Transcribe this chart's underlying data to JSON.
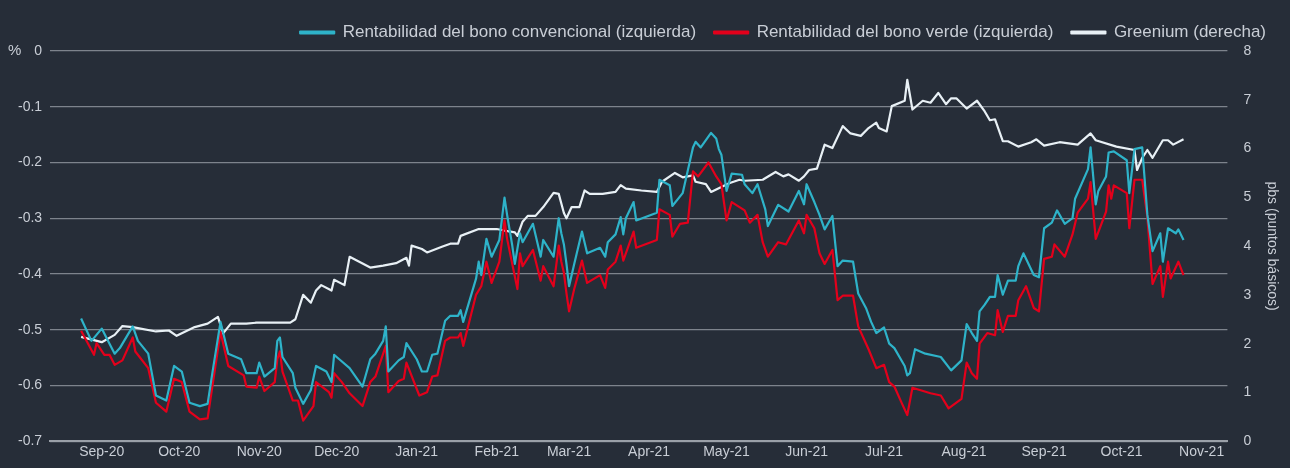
{
  "chart_data": {
    "type": "line",
    "ylabel": "%",
    "y2label": "pbs (puntos básicos)",
    "legend": "top right",
    "grid": "y",
    "xlim": [
      "2020-08-12",
      "2021-11-11"
    ],
    "xticks": [
      {
        "value": "2020-09-01",
        "label": "Sep-20"
      },
      {
        "value": "2020-10-01",
        "label": "Oct-20"
      },
      {
        "value": "2020-11-01",
        "label": "Nov-20"
      },
      {
        "value": "2020-12-01",
        "label": "Dec-20"
      },
      {
        "value": "2021-01-01",
        "label": "Jan-21"
      },
      {
        "value": "2021-02-01",
        "label": "Feb-21"
      },
      {
        "value": "2021-03-01",
        "label": "Mar-21"
      },
      {
        "value": "2021-04-01",
        "label": "Apr-21"
      },
      {
        "value": "2021-05-01",
        "label": "May-21"
      },
      {
        "value": "2021-06-01",
        "label": "Jun-21"
      },
      {
        "value": "2021-07-01",
        "label": "Jul-21"
      },
      {
        "value": "2021-08-01",
        "label": "Aug-21"
      },
      {
        "value": "2021-09-01",
        "label": "Sep-21"
      },
      {
        "value": "2021-10-01",
        "label": "Oct-21"
      },
      {
        "value": "2021-11-01",
        "label": "Nov-21"
      }
    ],
    "ylim": [
      -0.7,
      0
    ],
    "yticks": [
      0,
      -0.1,
      -0.2,
      -0.3,
      -0.4,
      -0.5,
      -0.6,
      -0.7
    ],
    "y2lim": [
      0,
      8
    ],
    "y2ticks": [
      0,
      1,
      2,
      3,
      4,
      5,
      6,
      7,
      8
    ],
    "series": [
      {
        "name": "Rentabilidad del bono convencional (izquierda)",
        "color": "#2eb3c9",
        "x": [
          "2020-08-24",
          "2020-08-28",
          "2020-09-01",
          "2020-09-04",
          "2020-09-06",
          "2020-09-08",
          "2020-09-13",
          "2020-09-15",
          "2020-09-19",
          "2020-09-22",
          "2020-09-26",
          "2020-09-29",
          "2020-10-02",
          "2020-10-05",
          "2020-10-09",
          "2020-10-12",
          "2020-10-14",
          "2020-10-17",
          "2020-10-20",
          "2020-10-25",
          "2020-10-27",
          "2020-10-31",
          "2020-11-01",
          "2020-11-03",
          "2020-11-07",
          "2020-11-08",
          "2020-11-09",
          "2020-11-10",
          "2020-11-14",
          "2020-11-15",
          "2020-11-18",
          "2020-11-21",
          "2020-11-23",
          "2020-11-27",
          "2020-11-29",
          "2020-11-30",
          "2020-12-02",
          "2020-12-06",
          "2020-12-11",
          "2020-12-14",
          "2020-12-16",
          "2020-12-19",
          "2020-12-20",
          "2020-12-21",
          "2020-12-25",
          "2020-12-27",
          "2020-12-28",
          "2021-01-01",
          "2021-01-03",
          "2021-01-05",
          "2021-01-07",
          "2021-01-09",
          "2021-01-12",
          "2021-01-14",
          "2021-01-17",
          "2021-01-18",
          "2021-01-19",
          "2021-01-24",
          "2021-01-25",
          "2021-01-26",
          "2021-01-28",
          "2021-01-30",
          "2021-02-02",
          "2021-02-04",
          "2021-02-05",
          "2021-02-07",
          "2021-02-08",
          "2021-02-10",
          "2021-02-11",
          "2021-02-15",
          "2021-02-18",
          "2021-02-19",
          "2021-02-23",
          "2021-02-25",
          "2021-02-26",
          "2021-02-27",
          "2021-02-28",
          "2021-03-01",
          "2021-03-03",
          "2021-03-06",
          "2021-03-08",
          "2021-03-13",
          "2021-03-15",
          "2021-03-16",
          "2021-03-19",
          "2021-03-21",
          "2021-03-22",
          "2021-03-23",
          "2021-03-26",
          "2021-03-27",
          "2021-04-04",
          "2021-04-05",
          "2021-04-09",
          "2021-04-10",
          "2021-04-14",
          "2021-04-18",
          "2021-04-19",
          "2021-04-21",
          "2021-04-25",
          "2021-04-27",
          "2021-04-28",
          "2021-04-29",
          "2021-05-01",
          "2021-05-03",
          "2021-05-07",
          "2021-05-08",
          "2021-05-11",
          "2021-05-13",
          "2021-05-16",
          "2021-05-17",
          "2021-05-21",
          "2021-05-25",
          "2021-05-29",
          "2021-05-31",
          "2021-06-01",
          "2021-06-04",
          "2021-06-06",
          "2021-06-08",
          "2021-06-11",
          "2021-06-13",
          "2021-06-15",
          "2021-06-19",
          "2021-06-21",
          "2021-06-24",
          "2021-06-26",
          "2021-06-28",
          "2021-07-01",
          "2021-07-03",
          "2021-07-05",
          "2021-07-09",
          "2021-07-10",
          "2021-07-11",
          "2021-07-13",
          "2021-07-17",
          "2021-07-23",
          "2021-07-27",
          "2021-07-31",
          "2021-08-02",
          "2021-08-04",
          "2021-08-06",
          "2021-08-07",
          "2021-08-09",
          "2021-08-11",
          "2021-08-13",
          "2021-08-14",
          "2021-08-16",
          "2021-08-18",
          "2021-08-21",
          "2021-08-22",
          "2021-08-24",
          "2021-08-28",
          "2021-08-30",
          "2021-09-01",
          "2021-09-04",
          "2021-09-06",
          "2021-09-09",
          "2021-09-12",
          "2021-09-13",
          "2021-09-18",
          "2021-09-19",
          "2021-09-21",
          "2021-09-22",
          "2021-09-25",
          "2021-09-26",
          "2021-09-28",
          "2021-10-03",
          "2021-10-04",
          "2021-10-06",
          "2021-10-09",
          "2021-10-11",
          "2021-10-13",
          "2021-10-16",
          "2021-10-17",
          "2021-10-19",
          "2021-10-22",
          "2021-10-23",
          "2021-10-25"
        ],
        "values": [
          -0.48,
          -0.52,
          -0.498,
          -0.525,
          -0.543,
          -0.533,
          -0.494,
          -0.52,
          -0.543,
          -0.618,
          -0.627,
          -0.565,
          -0.575,
          -0.631,
          -0.637,
          -0.633,
          -0.573,
          -0.486,
          -0.543,
          -0.553,
          -0.578,
          -0.578,
          -0.559,
          -0.584,
          -0.569,
          -0.52,
          -0.514,
          -0.549,
          -0.578,
          -0.604,
          -0.633,
          -0.608,
          -0.565,
          -0.575,
          -0.594,
          -0.545,
          -0.553,
          -0.569,
          -0.602,
          -0.553,
          -0.543,
          -0.52,
          -0.494,
          -0.575,
          -0.555,
          -0.549,
          -0.524,
          -0.553,
          -0.575,
          -0.575,
          -0.545,
          -0.543,
          -0.484,
          -0.475,
          -0.475,
          -0.465,
          -0.486,
          -0.408,
          -0.378,
          -0.402,
          -0.337,
          -0.369,
          -0.339,
          -0.263,
          -0.294,
          -0.349,
          -0.382,
          -0.327,
          -0.343,
          -0.31,
          -0.369,
          -0.339,
          -0.369,
          -0.3,
          -0.327,
          -0.347,
          -0.382,
          -0.422,
          -0.382,
          -0.324,
          -0.363,
          -0.353,
          -0.369,
          -0.343,
          -0.329,
          -0.298,
          -0.329,
          -0.3,
          -0.271,
          -0.304,
          -0.29,
          -0.231,
          -0.241,
          -0.278,
          -0.255,
          -0.173,
          -0.163,
          -0.173,
          -0.147,
          -0.157,
          -0.176,
          -0.186,
          -0.251,
          -0.22,
          -0.222,
          -0.239,
          -0.255,
          -0.239,
          -0.284,
          -0.314,
          -0.276,
          -0.288,
          -0.251,
          -0.275,
          -0.239,
          -0.271,
          -0.294,
          -0.32,
          -0.296,
          -0.386,
          -0.376,
          -0.378,
          -0.435,
          -0.461,
          -0.486,
          -0.506,
          -0.496,
          -0.525,
          -0.533,
          -0.565,
          -0.582,
          -0.578,
          -0.535,
          -0.543,
          -0.549,
          -0.573,
          -0.555,
          -0.49,
          -0.506,
          -0.52,
          -0.467,
          -0.455,
          -0.441,
          -0.441,
          -0.402,
          -0.437,
          -0.412,
          -0.412,
          -0.386,
          -0.363,
          -0.402,
          -0.406,
          -0.318,
          -0.308,
          -0.286,
          -0.31,
          -0.3,
          -0.265,
          -0.212,
          -0.173,
          -0.275,
          -0.251,
          -0.225,
          -0.182,
          -0.18,
          -0.196,
          -0.255,
          -0.176,
          -0.173,
          -0.294,
          -0.359,
          -0.327,
          -0.378,
          -0.318,
          -0.327,
          -0.32,
          -0.339
        ]
      },
      {
        "name": "Rentabilidad del bono verde (izquierda)",
        "color": "#e3001b",
        "x": [
          "2020-08-24",
          "2020-08-29",
          "2020-08-30",
          "2020-09-02",
          "2020-09-04",
          "2020-09-06",
          "2020-09-09",
          "2020-09-13",
          "2020-09-14",
          "2020-09-19",
          "2020-09-22",
          "2020-09-26",
          "2020-09-29",
          "2020-10-02",
          "2020-10-05",
          "2020-10-09",
          "2020-10-12",
          "2020-10-17",
          "2020-10-20",
          "2020-10-26",
          "2020-10-27",
          "2020-10-31",
          "2020-11-01",
          "2020-11-03",
          "2020-11-07",
          "2020-11-08",
          "2020-11-09",
          "2020-11-10",
          "2020-11-14",
          "2020-11-16",
          "2020-11-18",
          "2020-11-22",
          "2020-11-23",
          "2020-11-28",
          "2020-11-29",
          "2020-11-30",
          "2020-12-03",
          "2020-12-06",
          "2020-12-11",
          "2020-12-14",
          "2020-12-16",
          "2020-12-19",
          "2020-12-20",
          "2020-12-21",
          "2020-12-25",
          "2020-12-27",
          "2020-12-28",
          "2021-01-02",
          "2021-01-05",
          "2021-01-07",
          "2021-01-09",
          "2021-01-12",
          "2021-01-14",
          "2021-01-17",
          "2021-01-18",
          "2021-01-19",
          "2021-01-24",
          "2021-01-26",
          "2021-01-28",
          "2021-01-30",
          "2021-02-02",
          "2021-02-04",
          "2021-02-05",
          "2021-02-09",
          "2021-02-10",
          "2021-02-11",
          "2021-02-15",
          "2021-02-18",
          "2021-02-19",
          "2021-02-23",
          "2021-02-25",
          "2021-02-26",
          "2021-02-27",
          "2021-02-28",
          "2021-03-01",
          "2021-03-03",
          "2021-03-06",
          "2021-03-08",
          "2021-03-13",
          "2021-03-15",
          "2021-03-16",
          "2021-03-19",
          "2021-03-21",
          "2021-03-22",
          "2021-03-26",
          "2021-03-27",
          "2021-04-04",
          "2021-04-05",
          "2021-04-09",
          "2021-04-10",
          "2021-04-13",
          "2021-04-16",
          "2021-04-18",
          "2021-04-20",
          "2021-04-24",
          "2021-04-27",
          "2021-04-29",
          "2021-05-01",
          "2021-05-03",
          "2021-05-08",
          "2021-05-10",
          "2021-05-13",
          "2021-05-15",
          "2021-05-17",
          "2021-05-21",
          "2021-05-24",
          "2021-05-29",
          "2021-05-31",
          "2021-06-01",
          "2021-06-04",
          "2021-06-06",
          "2021-06-08",
          "2021-06-11",
          "2021-06-13",
          "2021-06-15",
          "2021-06-19",
          "2021-06-21",
          "2021-06-25",
          "2021-06-28",
          "2021-07-01",
          "2021-07-03",
          "2021-07-05",
          "2021-07-08",
          "2021-07-10",
          "2021-07-12",
          "2021-07-19",
          "2021-07-23",
          "2021-07-26",
          "2021-07-31",
          "2021-08-02",
          "2021-08-04",
          "2021-08-06",
          "2021-08-07",
          "2021-08-10",
          "2021-08-13",
          "2021-08-14",
          "2021-08-16",
          "2021-08-18",
          "2021-08-21",
          "2021-08-22",
          "2021-08-25",
          "2021-08-28",
          "2021-08-30",
          "2021-09-01",
          "2021-09-04",
          "2021-09-05",
          "2021-09-09",
          "2021-09-12",
          "2021-09-14",
          "2021-09-18",
          "2021-09-19",
          "2021-09-21",
          "2021-09-25",
          "2021-09-26",
          "2021-09-27",
          "2021-09-28",
          "2021-10-03",
          "2021-10-04",
          "2021-10-06",
          "2021-10-09",
          "2021-10-11",
          "2021-10-13",
          "2021-10-16",
          "2021-10-17",
          "2021-10-19",
          "2021-10-20",
          "2021-10-23",
          "2021-10-25"
        ],
        "values": [
          -0.502,
          -0.545,
          -0.524,
          -0.545,
          -0.545,
          -0.563,
          -0.555,
          -0.514,
          -0.539,
          -0.569,
          -0.631,
          -0.647,
          -0.588,
          -0.594,
          -0.647,
          -0.661,
          -0.659,
          -0.504,
          -0.565,
          -0.582,
          -0.602,
          -0.604,
          -0.584,
          -0.61,
          -0.594,
          -0.553,
          -0.539,
          -0.575,
          -0.627,
          -0.627,
          -0.663,
          -0.637,
          -0.594,
          -0.612,
          -0.622,
          -0.578,
          -0.594,
          -0.614,
          -0.637,
          -0.594,
          -0.584,
          -0.543,
          -0.529,
          -0.612,
          -0.592,
          -0.588,
          -0.559,
          -0.618,
          -0.612,
          -0.584,
          -0.582,
          -0.52,
          -0.514,
          -0.514,
          -0.506,
          -0.529,
          -0.437,
          -0.422,
          -0.378,
          -0.416,
          -0.378,
          -0.304,
          -0.337,
          -0.427,
          -0.363,
          -0.386,
          -0.357,
          -0.412,
          -0.386,
          -0.422,
          -0.349,
          -0.378,
          -0.398,
          -0.435,
          -0.467,
          -0.427,
          -0.376,
          -0.416,
          -0.402,
          -0.425,
          -0.392,
          -0.378,
          -0.349,
          -0.376,
          -0.324,
          -0.353,
          -0.339,
          -0.284,
          -0.294,
          -0.333,
          -0.31,
          -0.308,
          -0.216,
          -0.225,
          -0.2,
          -0.225,
          -0.239,
          -0.304,
          -0.271,
          -0.286,
          -0.308,
          -0.294,
          -0.343,
          -0.369,
          -0.343,
          -0.347,
          -0.304,
          -0.327,
          -0.294,
          -0.318,
          -0.363,
          -0.382,
          -0.357,
          -0.447,
          -0.439,
          -0.439,
          -0.494,
          -0.535,
          -0.569,
          -0.563,
          -0.594,
          -0.602,
          -0.633,
          -0.653,
          -0.604,
          -0.614,
          -0.618,
          -0.641,
          -0.624,
          -0.559,
          -0.578,
          -0.588,
          -0.525,
          -0.506,
          -0.51,
          -0.465,
          -0.504,
          -0.475,
          -0.475,
          -0.447,
          -0.422,
          -0.461,
          -0.467,
          -0.373,
          -0.369,
          -0.347,
          -0.369,
          -0.329,
          -0.29,
          -0.265,
          -0.235,
          -0.337,
          -0.288,
          -0.241,
          -0.265,
          -0.241,
          -0.255,
          -0.318,
          -0.231,
          -0.231,
          -0.298,
          -0.418,
          -0.386,
          -0.441,
          -0.378,
          -0.408,
          -0.378,
          -0.402
        ]
      },
      {
        "name": "Greenium (derecha)",
        "color": "#e8f0f5",
        "axis": "y2",
        "x": [
          "2020-08-24",
          "2020-09-01",
          "2020-09-06",
          "2020-09-09",
          "2020-09-13",
          "2020-09-22",
          "2020-09-27",
          "2020-09-30",
          "2020-10-07",
          "2020-10-12",
          "2020-10-16",
          "2020-10-18",
          "2020-10-21",
          "2020-10-27",
          "2020-10-31",
          "2020-11-13",
          "2020-11-15",
          "2020-11-18",
          "2020-11-21",
          "2020-11-23",
          "2020-11-25",
          "2020-11-29",
          "2020-11-30",
          "2020-12-04",
          "2020-12-06",
          "2020-12-14",
          "2020-12-19",
          "2020-12-24",
          "2020-12-28",
          "2020-12-29",
          "2020-12-30",
          "2021-01-03",
          "2021-01-05",
          "2021-01-11",
          "2021-01-14",
          "2021-01-17",
          "2021-01-18",
          "2021-01-25",
          "2021-02-01",
          "2021-02-08",
          "2021-02-09",
          "2021-02-11",
          "2021-02-13",
          "2021-02-16",
          "2021-02-19",
          "2021-02-23",
          "2021-02-25",
          "2021-02-27",
          "2021-02-28",
          "2021-03-02",
          "2021-03-05",
          "2021-03-07",
          "2021-03-09",
          "2021-03-14",
          "2021-03-19",
          "2021-03-21",
          "2021-03-23",
          "2021-03-29",
          "2021-04-04",
          "2021-04-06",
          "2021-04-11",
          "2021-04-14",
          "2021-04-18",
          "2021-04-19",
          "2021-04-23",
          "2021-04-25",
          "2021-05-02",
          "2021-05-06",
          "2021-05-08",
          "2021-05-15",
          "2021-05-20",
          "2021-05-23",
          "2021-05-25",
          "2021-05-29",
          "2021-05-31",
          "2021-06-02",
          "2021-06-05",
          "2021-06-08",
          "2021-06-11",
          "2021-06-15",
          "2021-06-18",
          "2021-06-22",
          "2021-06-25",
          "2021-06-28",
          "2021-06-29",
          "2021-07-02",
          "2021-07-04",
          "2021-07-09",
          "2021-07-10",
          "2021-07-12",
          "2021-07-16",
          "2021-07-19",
          "2021-07-22",
          "2021-07-25",
          "2021-07-27",
          "2021-07-29",
          "2021-08-02",
          "2021-08-06",
          "2021-08-09",
          "2021-08-11",
          "2021-08-13",
          "2021-08-16",
          "2021-08-18",
          "2021-08-22",
          "2021-08-27",
          "2021-08-29",
          "2021-09-01",
          "2021-09-07",
          "2021-09-14",
          "2021-09-19",
          "2021-09-21",
          "2021-09-29",
          "2021-10-06",
          "2021-10-07",
          "2021-10-09",
          "2021-10-11",
          "2021-10-13",
          "2021-10-17",
          "2021-10-19",
          "2021-10-21",
          "2021-10-25"
        ],
        "values": [
          2.14,
          2.03,
          2.18,
          2.36,
          2.34,
          2.25,
          2.27,
          2.16,
          2.34,
          2.41,
          2.55,
          2.21,
          2.41,
          2.41,
          2.43,
          2.43,
          2.5,
          3.0,
          2.84,
          3.09,
          3.2,
          3.09,
          3.31,
          3.2,
          3.78,
          3.56,
          3.6,
          3.65,
          3.76,
          3.6,
          4.01,
          3.94,
          3.87,
          3.99,
          4.05,
          4.05,
          4.21,
          4.35,
          4.35,
          4.28,
          4.21,
          4.5,
          4.62,
          4.62,
          4.8,
          5.09,
          5.07,
          4.68,
          4.57,
          4.8,
          4.8,
          5.14,
          5.07,
          5.07,
          5.11,
          5.25,
          5.18,
          5.14,
          5.11,
          5.32,
          5.5,
          5.41,
          5.45,
          5.32,
          5.27,
          5.11,
          5.29,
          5.36,
          5.34,
          5.36,
          5.52,
          5.43,
          5.47,
          5.34,
          5.43,
          5.56,
          5.59,
          6.08,
          6.01,
          6.46,
          6.31,
          6.26,
          6.42,
          6.53,
          6.42,
          6.35,
          6.87,
          6.98,
          7.41,
          6.8,
          6.98,
          6.94,
          7.14,
          6.91,
          7.03,
          7.03,
          6.82,
          6.98,
          6.76,
          6.58,
          6.6,
          6.15,
          6.15,
          6.04,
          6.13,
          6.19,
          6.06,
          6.13,
          6.08,
          6.31,
          6.17,
          6.04,
          5.97,
          5.56,
          5.81,
          5.97,
          5.81,
          6.17,
          6.17,
          6.08,
          6.19
        ]
      }
    ]
  }
}
